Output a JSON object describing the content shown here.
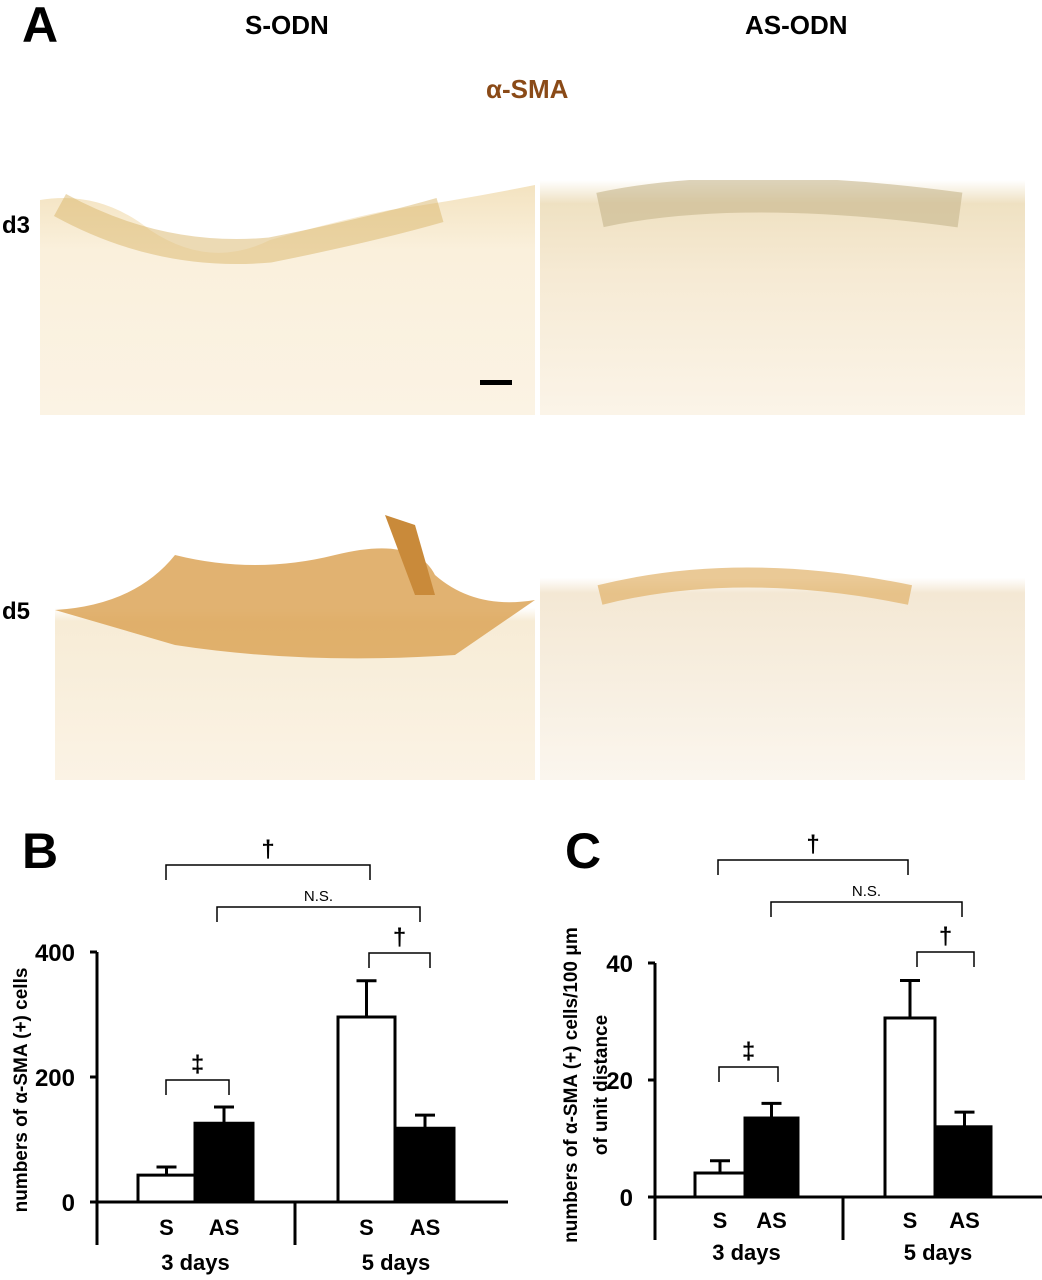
{
  "panel_a": {
    "letter": "A",
    "columns": [
      "S-ODN",
      "AS-ODN"
    ],
    "stain_label": "α-SMA",
    "rows": [
      "d3",
      "d5"
    ],
    "stain_color": "#8a4a17"
  },
  "chart_data": [
    {
      "panel": "B",
      "type": "bar",
      "groups": [
        "3 days",
        "5 days"
      ],
      "categories": [
        "S",
        "AS"
      ],
      "series": [
        {
          "name": "S",
          "fill": "#ffffff",
          "values": [
            43,
            296
          ],
          "error": [
            13,
            58
          ]
        },
        {
          "name": "AS",
          "fill": "#000000",
          "values": [
            126,
            118
          ],
          "error": [
            26,
            21
          ]
        }
      ],
      "ylabel": "numbers of α-SMA (+) cells",
      "ylim": [
        0,
        400
      ],
      "yticks": [
        "0",
        "200",
        "400"
      ],
      "significance": [
        {
          "mark": "†",
          "from": "S 3 days",
          "to": "S 5 days"
        },
        {
          "mark": "N.S.",
          "from": "AS 3 days",
          "to": "AS 5 days"
        },
        {
          "mark": "†",
          "from": "S 5 days",
          "to": "AS 5 days"
        },
        {
          "mark": "‡",
          "from": "S 3 days",
          "to": "AS 3 days"
        }
      ]
    },
    {
      "panel": "C",
      "type": "bar",
      "groups": [
        "3 days",
        "5 days"
      ],
      "categories": [
        "S",
        "AS"
      ],
      "series": [
        {
          "name": "S",
          "fill": "#ffffff",
          "values": [
            4.1,
            30.6
          ],
          "error": [
            2.1,
            6.4
          ]
        },
        {
          "name": "AS",
          "fill": "#000000",
          "values": [
            13.5,
            12
          ],
          "error": [
            2.5,
            2.5
          ]
        }
      ],
      "ylabel": [
        "numbers of α-SMA (+) cells/100 μm",
        "of unit distance"
      ],
      "ylim": [
        0,
        40
      ],
      "yticks": [
        "0",
        "20",
        "40"
      ],
      "significance": [
        {
          "mark": "†",
          "from": "S 3 days",
          "to": "S 5 days"
        },
        {
          "mark": "N.S.",
          "from": "AS 3 days",
          "to": "AS 5 days"
        },
        {
          "mark": "†",
          "from": "S 5 days",
          "to": "AS 5 days"
        },
        {
          "mark": "‡",
          "from": "S 3 days",
          "to": "AS 3 days"
        }
      ]
    }
  ]
}
